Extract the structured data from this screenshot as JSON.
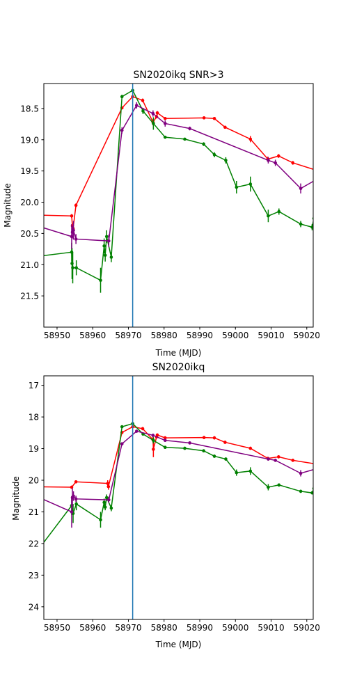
{
  "colors": {
    "red": "#ff0000",
    "green": "#008000",
    "purple": "#800080",
    "peak": "#1f77b4"
  },
  "chart_data": [
    {
      "type": "line",
      "title": "SN2020ikq SNR>3",
      "xlabel": "Time (MJD)",
      "ylabel": "Magnitude",
      "xlim": [
        58946.3,
        59021.8
      ],
      "ylim": [
        22.0,
        18.1
      ],
      "yinverted": true,
      "grid": false,
      "xticks": [
        58950,
        58960,
        58970,
        58980,
        58990,
        59000,
        59010,
        59020
      ],
      "yticks": [
        18.5,
        19.0,
        19.5,
        20.0,
        20.5,
        21.0,
        21.5
      ],
      "ytick_labels": [
        "18.5",
        "19.0",
        "19.5",
        "20.0",
        "20.5",
        "21.0",
        "21.5"
      ],
      "vline": 58971.2,
      "series": [
        {
          "color": "#ff0000",
          "x": [
            58940,
            58954.1,
            58954.3,
            58954.5,
            58955.3,
            58968.2,
            58971.2,
            58974.0,
            58976.9,
            58977.9,
            58978.1,
            58980.3,
            58991.2,
            58994.1,
            58997.1,
            59004.2,
            59009.1,
            59012.1,
            59016.1,
            59030
          ],
          "y": [
            20.2,
            20.22,
            20.38,
            20.42,
            20.05,
            18.49,
            18.31,
            18.37,
            18.72,
            18.63,
            18.57,
            18.66,
            18.65,
            18.66,
            18.8,
            18.99,
            19.31,
            19.26,
            19.37,
            19.62
          ],
          "err": [
            0,
            0.03,
            0.05,
            0.05,
            0.03,
            0.02,
            0.02,
            0.03,
            0.05,
            0.03,
            0.03,
            0.02,
            0.02,
            0.02,
            0.02,
            0.05,
            0.04,
            0.03,
            0.03,
            0
          ]
        },
        {
          "color": "#008000",
          "x": [
            58940,
            58954.1,
            58954.2,
            58954.4,
            58955.4,
            58962.2,
            58963.2,
            58963.5,
            58963.9,
            58965.2,
            58968.2,
            58971.2,
            58974.1,
            58977.0,
            58980.3,
            58985.8,
            58991.1,
            58994.1,
            58997.3,
            59000.3,
            59004.2,
            59009.2,
            59012.2,
            59018.3,
            59021.5,
            59022
          ],
          "y": [
            20.9,
            20.8,
            20.98,
            21.05,
            21.05,
            21.25,
            20.7,
            20.85,
            20.55,
            20.88,
            18.31,
            18.21,
            18.54,
            18.74,
            18.96,
            18.99,
            19.07,
            19.24,
            19.33,
            19.76,
            19.71,
            20.22,
            20.15,
            20.35,
            20.4,
            20.26
          ],
          "err": [
            0,
            0.15,
            0.25,
            0.25,
            0.12,
            0.2,
            0.12,
            0.1,
            0.1,
            0.08,
            0.03,
            0.03,
            0.05,
            0.1,
            0.02,
            0.02,
            0.03,
            0.04,
            0.05,
            0.1,
            0.12,
            0.1,
            0.05,
            0.05,
            0.05,
            0.05
          ]
        },
        {
          "color": "#800080",
          "x": [
            58940,
            58954.1,
            58954.3,
            58954.6,
            58955.3,
            58964.5,
            58968.2,
            58972.3,
            58976.9,
            58980.3,
            58987.2,
            59009.2,
            59011.2,
            59018.3,
            59030
          ],
          "y": [
            20.3,
            20.55,
            20.48,
            20.45,
            20.59,
            20.62,
            18.85,
            18.45,
            18.58,
            18.74,
            18.82,
            19.33,
            19.37,
            19.78,
            19.4
          ],
          "err": [
            0,
            0.2,
            0.1,
            0.15,
            0.08,
            0.1,
            0.05,
            0.05,
            0.05,
            0.05,
            0.03,
            0.05,
            0.05,
            0.08,
            0
          ]
        }
      ]
    },
    {
      "type": "line",
      "title": "SN2020ikq",
      "xlabel": "Time (MJD)",
      "ylabel": "Magnitude",
      "xlim": [
        58946.3,
        59021.8
      ],
      "ylim": [
        24.4,
        16.7
      ],
      "yinverted": true,
      "grid": false,
      "xticks": [
        58950,
        58960,
        58970,
        58980,
        58990,
        59000,
        59010,
        59020
      ],
      "yticks": [
        17,
        18,
        19,
        20,
        21,
        22,
        23,
        24
      ],
      "ytick_labels": [
        "17",
        "18",
        "19",
        "20",
        "21",
        "22",
        "23",
        "24"
      ],
      "vline": 58971.2,
      "series": [
        {
          "color": "#ff0000",
          "x": [
            58940,
            58954.1,
            58955.3,
            58964.2,
            58964.4,
            58968.2,
            58971.2,
            58974.0,
            58976.9,
            58977.0,
            58977.9,
            58978.1,
            58980.3,
            58991.2,
            58994.1,
            58997.1,
            59004.2,
            59009.1,
            59012.1,
            59016.1,
            59030
          ],
          "y": [
            20.2,
            20.22,
            20.05,
            20.1,
            20.2,
            18.49,
            18.31,
            18.37,
            18.72,
            19.02,
            18.63,
            18.57,
            18.66,
            18.65,
            18.66,
            18.8,
            18.99,
            19.31,
            19.26,
            19.37,
            19.62
          ],
          "err": [
            0,
            0.05,
            0.05,
            0.1,
            0.1,
            0.05,
            0.05,
            0.05,
            0.1,
            0.25,
            0.05,
            0.05,
            0.05,
            0.05,
            0.05,
            0.05,
            0.05,
            0.05,
            0.05,
            0.05,
            0
          ]
        },
        {
          "color": "#008000",
          "x": [
            58940,
            58954.1,
            58954.5,
            58955.4,
            58962.2,
            58963.2,
            58963.5,
            58963.9,
            58965.2,
            58968.2,
            58971.2,
            58974.1,
            58977.0,
            58980.3,
            58985.8,
            58991.1,
            58994.1,
            58997.3,
            59000.3,
            59004.2,
            59009.2,
            59012.2,
            59018.3,
            59021.5,
            59022
          ],
          "y": [
            22.9,
            20.8,
            21.05,
            20.75,
            21.25,
            20.7,
            20.85,
            20.55,
            20.88,
            18.31,
            18.21,
            18.54,
            18.74,
            18.96,
            18.99,
            19.07,
            19.24,
            19.33,
            19.76,
            19.71,
            20.22,
            20.15,
            20.35,
            20.4,
            20.26
          ],
          "err": [
            0,
            0.3,
            0.3,
            0.2,
            0.25,
            0.12,
            0.1,
            0.1,
            0.1,
            0.05,
            0.05,
            0.05,
            0.1,
            0.05,
            0.05,
            0.05,
            0.05,
            0.05,
            0.1,
            0.12,
            0.1,
            0.05,
            0.05,
            0.05,
            0.05
          ]
        },
        {
          "color": "#800080",
          "x": [
            58940,
            58954.1,
            58954.3,
            58954.6,
            58955.3,
            58964.5,
            58968.2,
            58972.3,
            58976.9,
            58980.3,
            58987.2,
            59009.2,
            59011.2,
            59018.3,
            59030
          ],
          "y": [
            20.3,
            21.0,
            20.55,
            20.5,
            20.59,
            20.62,
            18.85,
            18.45,
            18.58,
            18.74,
            18.82,
            19.33,
            19.37,
            19.78,
            19.4
          ],
          "err": [
            0,
            0.5,
            0.3,
            0.15,
            0.1,
            0.1,
            0.05,
            0.05,
            0.05,
            0.05,
            0.05,
            0.05,
            0.05,
            0.1,
            0
          ]
        }
      ]
    }
  ]
}
